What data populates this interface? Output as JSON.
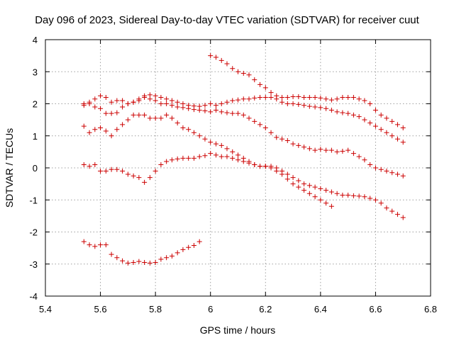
{
  "chart_data": {
    "type": "scatter",
    "title": "Day 096 of 2023, Sidereal Day-to-day VTEC variation (SDTVAR) for receiver cuut",
    "xlabel": "GPS time / hours",
    "ylabel": "SDTVAR / TECUs",
    "xlim": [
      5.4,
      6.8
    ],
    "ylim": [
      -4,
      4
    ],
    "xticks": [
      5.4,
      5.6,
      5.8,
      6.0,
      6.2,
      6.4,
      6.6,
      6.8
    ],
    "xtick_labels": [
      "5.4",
      "5.6",
      "5.8",
      "6",
      "6.2",
      "6.4",
      "6.6",
      "6.8"
    ],
    "yticks": [
      -4,
      -3,
      -2,
      -1,
      0,
      1,
      2,
      3,
      4
    ],
    "ytick_labels": [
      "-4",
      "-3",
      "-2",
      "-1",
      "0",
      "1",
      "2",
      "3",
      "4"
    ],
    "grid": true,
    "marker": "+",
    "color": "#cc0000",
    "series": [
      {
        "name": "series-1",
        "x": [
          5.54,
          5.56,
          5.58,
          5.6,
          5.62,
          5.64,
          5.66,
          5.68,
          5.7,
          5.72,
          5.74,
          5.76,
          5.78,
          5.8,
          5.82,
          5.84,
          5.86,
          5.88,
          5.9,
          5.92,
          5.94,
          5.96
        ],
        "y": [
          -2.3,
          -2.4,
          -2.45,
          -2.4,
          -2.4,
          -2.7,
          -2.8,
          -2.9,
          -2.97,
          -2.95,
          -2.92,
          -2.95,
          -2.97,
          -2.95,
          -2.85,
          -2.8,
          -2.75,
          -2.65,
          -2.55,
          -2.48,
          -2.42,
          -2.3
        ]
      },
      {
        "name": "series-2",
        "x": [
          5.54,
          5.56,
          5.58,
          5.6,
          5.62,
          5.64,
          5.66,
          5.68,
          5.7,
          5.72,
          5.74,
          5.76,
          5.78,
          5.8,
          5.82,
          5.84,
          5.86,
          5.88,
          5.9,
          5.92,
          5.94,
          5.96,
          5.98,
          6.0,
          6.02,
          6.04,
          6.06,
          6.08,
          6.1,
          6.12,
          6.14,
          6.16,
          6.18,
          6.2,
          6.22,
          6.24,
          6.26,
          6.28,
          6.3,
          6.32,
          6.34,
          6.36,
          6.38,
          6.4,
          6.42,
          6.44
        ],
        "y": [
          0.1,
          0.05,
          0.1,
          -0.1,
          -0.1,
          -0.05,
          -0.05,
          -0.1,
          -0.2,
          -0.25,
          -0.3,
          -0.45,
          -0.3,
          -0.1,
          0.1,
          0.2,
          0.25,
          0.28,
          0.3,
          0.3,
          0.3,
          0.35,
          0.38,
          0.45,
          0.4,
          0.35,
          0.35,
          0.3,
          0.25,
          0.2,
          0.15,
          0.1,
          0.05,
          0.05,
          0.0,
          -0.1,
          -0.2,
          -0.35,
          -0.5,
          -0.6,
          -0.7,
          -0.8,
          -0.9,
          -1.0,
          -1.1,
          -1.2
        ]
      },
      {
        "name": "series-3",
        "x": [
          5.54,
          5.56,
          5.58,
          5.6,
          5.62,
          5.64,
          5.66,
          5.68,
          5.7,
          5.72,
          5.74,
          5.76,
          5.78,
          5.8,
          5.82,
          5.84,
          5.86,
          5.88,
          5.9,
          5.92,
          5.94,
          5.96,
          5.98,
          6.0,
          6.02,
          6.04,
          6.06,
          6.08,
          6.1,
          6.12,
          6.14,
          6.16,
          6.18,
          6.2,
          6.22,
          6.24,
          6.26,
          6.28,
          6.3,
          6.32,
          6.34,
          6.36,
          6.38,
          6.4,
          6.42,
          6.44,
          6.46,
          6.48,
          6.5,
          6.52,
          6.54,
          6.56,
          6.58,
          6.6,
          6.62,
          6.64,
          6.66,
          6.68,
          6.7
        ],
        "y": [
          1.3,
          1.1,
          1.2,
          1.25,
          1.15,
          1.0,
          1.2,
          1.35,
          1.5,
          1.65,
          1.65,
          1.65,
          1.55,
          1.55,
          1.55,
          1.65,
          1.55,
          1.4,
          1.25,
          1.2,
          1.1,
          1.0,
          0.9,
          0.8,
          0.75,
          0.7,
          0.6,
          0.5,
          0.4,
          0.3,
          0.2,
          0.1,
          0.05,
          0.05,
          0.05,
          0.0,
          -0.1,
          -0.2,
          -0.3,
          -0.4,
          -0.5,
          -0.55,
          -0.6,
          -0.65,
          -0.7,
          -0.75,
          -0.8,
          -0.85,
          -0.85,
          -0.87,
          -0.88,
          -0.9,
          -0.95,
          -1.0,
          -1.1,
          -1.25,
          -1.35,
          -1.45,
          -1.55
        ]
      },
      {
        "name": "series-4",
        "x": [
          5.54,
          5.56,
          5.58,
          5.6,
          5.62,
          5.64,
          5.66,
          5.68,
          5.7,
          5.72,
          5.74,
          5.76,
          5.78,
          5.8,
          5.82,
          5.84,
          5.86,
          5.88,
          5.9,
          5.92,
          5.94,
          5.96,
          5.98,
          6.0,
          6.02,
          6.04,
          6.06,
          6.08,
          6.1,
          6.12,
          6.14,
          6.16,
          6.18,
          6.2,
          6.22,
          6.24,
          6.26,
          6.28,
          6.3,
          6.32,
          6.34,
          6.36,
          6.38,
          6.4,
          6.42,
          6.44,
          6.46,
          6.48,
          6.5,
          6.52,
          6.54,
          6.56,
          6.58,
          6.6,
          6.62,
          6.64,
          6.66,
          6.68,
          6.7
        ],
        "y": [
          1.95,
          2.0,
          1.9,
          1.85,
          1.7,
          1.7,
          1.72,
          1.9,
          2.0,
          2.05,
          2.1,
          2.2,
          2.15,
          2.1,
          2.0,
          2.0,
          1.95,
          1.9,
          1.88,
          1.85,
          1.82,
          1.8,
          1.78,
          1.75,
          1.8,
          1.75,
          1.72,
          1.7,
          1.7,
          1.65,
          1.55,
          1.45,
          1.35,
          1.25,
          1.1,
          0.95,
          0.9,
          0.85,
          0.75,
          0.7,
          0.65,
          0.6,
          0.55,
          0.58,
          0.55,
          0.55,
          0.5,
          0.52,
          0.55,
          0.45,
          0.35,
          0.25,
          0.1,
          0.0,
          -0.05,
          -0.1,
          -0.15,
          -0.2,
          -0.25
        ]
      },
      {
        "name": "series-5",
        "x": [
          5.54,
          5.56,
          5.58,
          5.6,
          5.62,
          5.64,
          5.66,
          5.68,
          5.7,
          5.72,
          5.74,
          5.76,
          5.78,
          5.8,
          5.82,
          5.84,
          5.86,
          5.88,
          5.9,
          5.92,
          5.94,
          5.96,
          5.98,
          6.0,
          6.02,
          6.04,
          6.06,
          6.08,
          6.1,
          6.12,
          6.14,
          6.16,
          6.18,
          6.2,
          6.22,
          6.24,
          6.26,
          6.28,
          6.3,
          6.32,
          6.34,
          6.36,
          6.38,
          6.4,
          6.42,
          6.44,
          6.46,
          6.48,
          6.5,
          6.52,
          6.54,
          6.56,
          6.58,
          6.6,
          6.62,
          6.64,
          6.66,
          6.68,
          6.7
        ],
        "y": [
          2.0,
          2.05,
          2.15,
          2.25,
          2.2,
          2.05,
          2.1,
          2.1,
          2.0,
          2.05,
          2.15,
          2.25,
          2.28,
          2.25,
          2.2,
          2.15,
          2.1,
          2.05,
          2.0,
          1.95,
          1.93,
          1.92,
          1.95,
          2.0,
          1.95,
          2.0,
          2.05,
          2.1,
          2.12,
          2.15,
          2.15,
          2.18,
          2.2,
          2.2,
          2.2,
          2.15,
          2.05,
          2.0,
          2.0,
          1.98,
          1.95,
          1.92,
          1.9,
          1.88,
          1.85,
          1.8,
          1.75,
          1.72,
          1.7,
          1.65,
          1.6,
          1.5,
          1.4,
          1.3,
          1.2,
          1.1,
          1.0,
          0.9,
          0.8
        ]
      },
      {
        "name": "series-6",
        "x": [
          6.0,
          6.02,
          6.04,
          6.06,
          6.08,
          6.1,
          6.12,
          6.14,
          6.16,
          6.18,
          6.2,
          6.22,
          6.24,
          6.26,
          6.28,
          6.3,
          6.32,
          6.34,
          6.36,
          6.38,
          6.4,
          6.42,
          6.44,
          6.46,
          6.48,
          6.5,
          6.52,
          6.54,
          6.56,
          6.58,
          6.6,
          6.62,
          6.64,
          6.66,
          6.68,
          6.7
        ],
        "y": [
          3.5,
          3.45,
          3.35,
          3.25,
          3.1,
          3.0,
          2.95,
          2.9,
          2.75,
          2.6,
          2.5,
          2.35,
          2.25,
          2.2,
          2.2,
          2.22,
          2.22,
          2.2,
          2.2,
          2.2,
          2.18,
          2.15,
          2.12,
          2.15,
          2.2,
          2.2,
          2.2,
          2.15,
          2.1,
          2.0,
          1.8,
          1.65,
          1.55,
          1.45,
          1.35,
          1.25
        ]
      }
    ]
  }
}
